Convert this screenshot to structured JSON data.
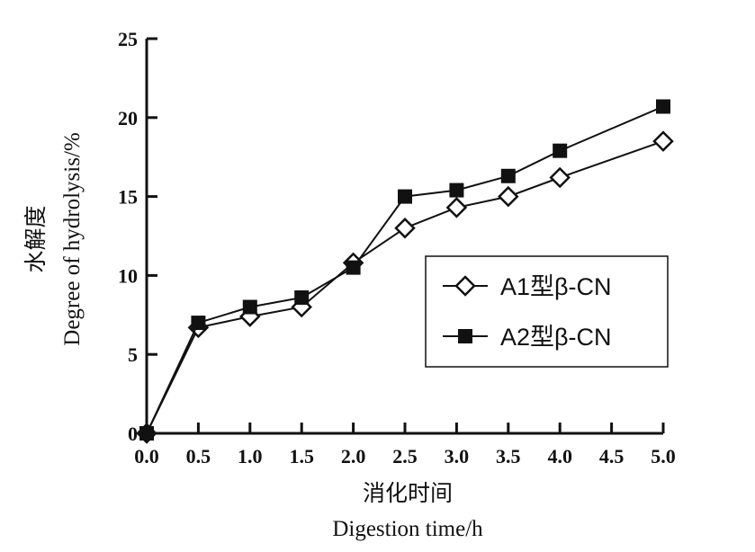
{
  "chart_data": {
    "type": "line",
    "xlabel_zh": "消化时间",
    "xlabel_en": "Digestion time/h",
    "ylabel_zh": "水解度",
    "ylabel_en": "Degree of hydrolysis/%",
    "x": [
      0.0,
      0.5,
      1.0,
      1.5,
      2.0,
      2.5,
      3.0,
      3.5,
      4.0,
      5.0
    ],
    "xticks": [
      "0.0",
      "0.5",
      "1.0",
      "1.5",
      "2.0",
      "2.5",
      "3.0",
      "3.5",
      "4.0",
      "4.5",
      "5.0"
    ],
    "xlim": [
      0,
      5
    ],
    "yticks": [
      "0",
      "5",
      "10",
      "15",
      "20",
      "25"
    ],
    "ylim": [
      0,
      25
    ],
    "legend_position": "right",
    "series": [
      {
        "name": "A1型β-CN",
        "marker": "open-diamond",
        "color": "#111111",
        "values": [
          0,
          6.7,
          7.4,
          8.0,
          10.8,
          13.0,
          14.3,
          15.0,
          16.2,
          18.5
        ]
      },
      {
        "name": "A2型β-CN",
        "marker": "filled-square",
        "color": "#111111",
        "values": [
          0,
          7.0,
          8.0,
          8.6,
          10.5,
          15.0,
          15.4,
          16.3,
          17.9,
          20.7
        ]
      }
    ]
  }
}
